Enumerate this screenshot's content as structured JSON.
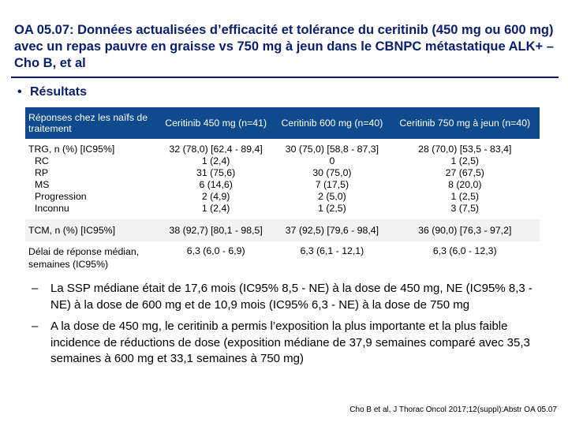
{
  "title": "OA 05.07: Données actualisées d’efficacité et tolérance du ceritinib (450 mg ou 600 mg) avec un repas pauvre en graisse vs 750 mg à jeun dans le CBNPC métastatique ALK+ – Cho B, et al",
  "section_label": "Résultats",
  "table": {
    "headers": [
      "Réponses chez les naïfs de traitement",
      "Ceritinib 450 mg (n=41)",
      "Ceritinib 600 mg (n=40)",
      "Ceritinib 750 mg à jeun (n=40)"
    ],
    "trg": {
      "labels": [
        "TRG, n (%) [IC95%]",
        "RC",
        "RP",
        "MS",
        "Progression",
        "Inconnu"
      ],
      "col450": [
        "32 (78,0) [62,4 - 89,4]",
        "1 (2,4)",
        "31 (75,6)",
        "6 (14,6)",
        "2 (4,9)",
        "1 (2,4)"
      ],
      "col600": [
        "30 (75,0) [58,8 - 87,3]",
        "0",
        "30 (75,0)",
        "7 (17,5)",
        "2 (5,0)",
        "1 (2,5)"
      ],
      "col750": [
        "28 (70,0) [53,5 - 83,4]",
        "1 (2,5)",
        "27 (67,5)",
        "8 (20,0)",
        "1 (2,5)",
        "3 (7,5)"
      ]
    },
    "tcm": {
      "label": "TCM, n (%) [IC95%]",
      "values": [
        "38 (92,7) [80,1 - 98,5]",
        "37 (92,5) [79,6 - 98,4]",
        "36 (90,0) [76,3 - 97,2]"
      ]
    },
    "delai": {
      "label": "Délai de réponse médian, semaines (IC95%)",
      "values": [
        "6,3 (6,0 - 6,9)",
        "6,3 (6,1 - 12,1)",
        "6,3 (6,0 - 12,3)"
      ]
    }
  },
  "notes": [
    "La SSP médiane était de 17,6 mois (IC95% 8,5 - NE) à la dose de 450 mg, NE (IC95% 8,3 - NE) à la dose de 600 mg et de 10,9 mois (IC95% 6,3 - NE) à la dose de 750 mg",
    "A la dose de 450 mg, le ceritinib a permis l’exposition la plus importante et la plus faible incidence de réductions de dose (exposition médiane de 37,9 semaines comparé avec 35,3 semaines à 600 mg et 33,1 semaines à 750 mg)"
  ],
  "dash": "–",
  "bullet_glyph": "•",
  "source": "Cho B et al, J Thorac Oncol 2017;12(suppl):Abstr OA 05.07",
  "colors": {
    "title": "#0a1e6e",
    "header_bg": "#0f4a8c",
    "alt_row": "#f2f2f2"
  }
}
